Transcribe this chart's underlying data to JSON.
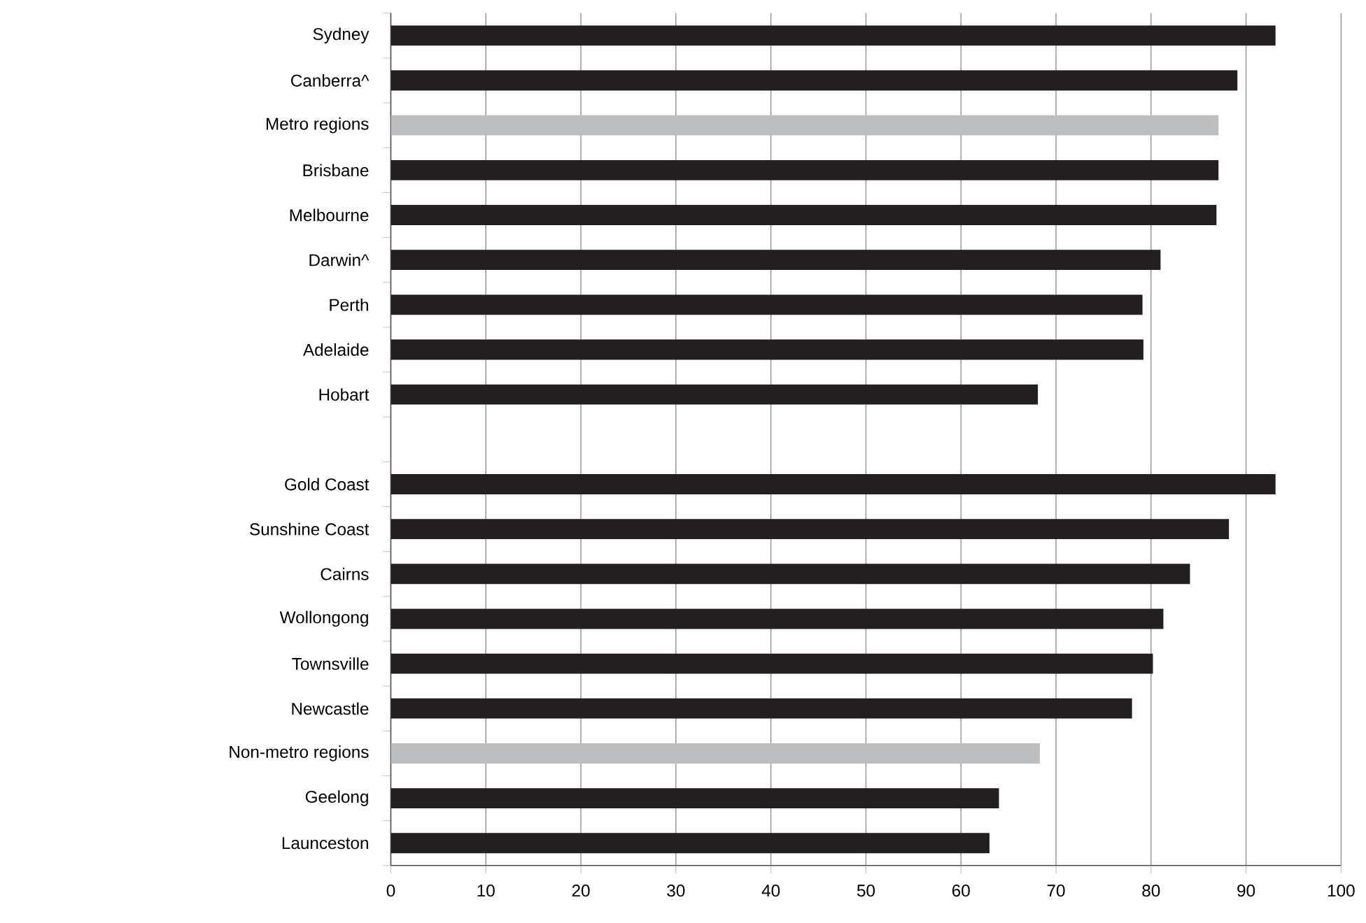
{
  "chart_data": {
    "type": "bar",
    "orientation": "horizontal",
    "categories": [
      "Sydney",
      "Canberra^",
      "Metro regions",
      "Brisbane",
      "Melbourne",
      "Darwin^",
      "Perth",
      "Adelaide",
      "Hobart",
      null,
      "Gold Coast",
      "Sunshine Coast",
      "Cairns",
      "Wollongong",
      "Townsville",
      "Newcastle",
      "Non-metro regions",
      "Geelong",
      "Launceston"
    ],
    "values": [
      93.1,
      89.1,
      87.1,
      87.1,
      86.9,
      81.0,
      79.1,
      79.2,
      68.1,
      null,
      93.1,
      88.2,
      84.1,
      81.3,
      80.2,
      78.0,
      68.3,
      64.0,
      63.0
    ],
    "colors": [
      "#231f20",
      "#231f20",
      "#bcbec0",
      "#231f20",
      "#231f20",
      "#231f20",
      "#231f20",
      "#231f20",
      "#231f20",
      "#231f20",
      "#231f20",
      "#231f20",
      "#231f20",
      "#231f20",
      "#231f20",
      "#231f20",
      "#bcbec0",
      "#231f20",
      "#231f20"
    ],
    "xlim": [
      0,
      100
    ],
    "xticks": [
      0,
      10,
      20,
      30,
      40,
      50,
      60,
      70,
      80,
      90,
      100
    ],
    "grid": "x"
  }
}
